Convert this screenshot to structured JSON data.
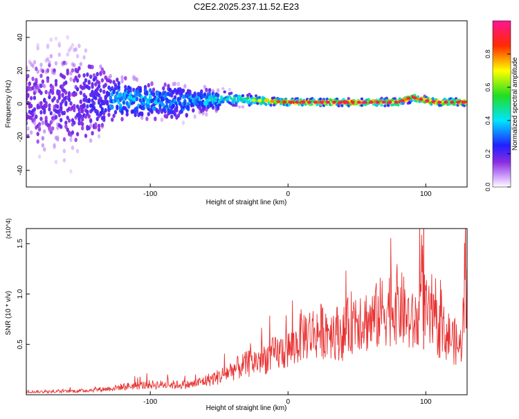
{
  "title": "C2E2.2025.237.11.52.E23",
  "colorbar": {
    "label": "Normalized spectral amplitude",
    "ticks": [
      "0.0",
      "0.2",
      "0.4",
      "0.6",
      "0.8"
    ],
    "range": [
      0,
      1
    ]
  },
  "chart_data": [
    {
      "type": "heatmap",
      "title": "C2E2.2025.237.11.52.E23",
      "xlabel": "Height of straight line (km)",
      "ylabel": "Frequency (Hz)",
      "xlim": [
        -190,
        130
      ],
      "ylim": [
        -50,
        50
      ],
      "x_ticks": [
        "-100",
        "0",
        "100"
      ],
      "y_ticks": [
        "-40",
        "-20",
        "0",
        "20",
        "40"
      ],
      "colorscale": "rainbow (white-violet-blue-cyan-green-yellow-red-magenta)",
      "description_points": {
        "x": [
          -190,
          -150,
          -130,
          -100,
          -80,
          -60,
          -40,
          -20,
          0,
          20,
          40,
          60,
          80,
          90,
          100,
          110,
          130
        ],
        "ridge_frequency_hz": [
          0,
          2,
          3,
          2,
          1,
          2,
          3,
          2,
          1,
          1,
          1,
          1,
          1,
          4,
          2,
          1,
          1
        ],
        "peak_amplitude": [
          0.2,
          0.25,
          0.4,
          0.45,
          0.4,
          0.45,
          0.55,
          0.7,
          0.9,
          0.95,
          0.95,
          0.95,
          0.95,
          0.9,
          0.95,
          0.95,
          0.9
        ],
        "spread_hz": [
          50,
          50,
          20,
          15,
          15,
          10,
          6,
          4,
          3,
          3,
          3,
          3,
          3,
          4,
          3,
          3,
          3
        ]
      },
      "grid": false
    },
    {
      "type": "line",
      "xlabel": "Height of straight line (km)",
      "ylabel": "SNR (10 * v/v)",
      "y_multiplier": "(x10^4)",
      "xlim": [
        -190,
        130
      ],
      "ylim": [
        0,
        1.65
      ],
      "x_ticks": [
        "-100",
        "0",
        "100"
      ],
      "y_ticks": [
        "0.5",
        "1.0",
        "1.5"
      ],
      "series": [
        {
          "color": "#e83030",
          "x": [
            -190,
            -170,
            -150,
            -130,
            -120,
            -110,
            -100,
            -90,
            -80,
            -70,
            -60,
            -50,
            -40,
            -30,
            -20,
            -10,
            0,
            5,
            10,
            20,
            30,
            40,
            45,
            50,
            55,
            60,
            70,
            80,
            90,
            95,
            98,
            100,
            105,
            110,
            120,
            125,
            128,
            130
          ],
          "y": [
            0.03,
            0.03,
            0.04,
            0.06,
            0.08,
            0.09,
            0.1,
            0.1,
            0.1,
            0.1,
            0.14,
            0.18,
            0.25,
            0.3,
            0.35,
            0.4,
            0.45,
            0.48,
            0.6,
            0.62,
            0.65,
            0.6,
            0.7,
            0.8,
            0.75,
            0.72,
            0.85,
            0.9,
            0.7,
            0.75,
            1.1,
            0.8,
            0.7,
            0.65,
            0.55,
            0.45,
            0.85,
            0.9
          ]
        }
      ]
    }
  ]
}
